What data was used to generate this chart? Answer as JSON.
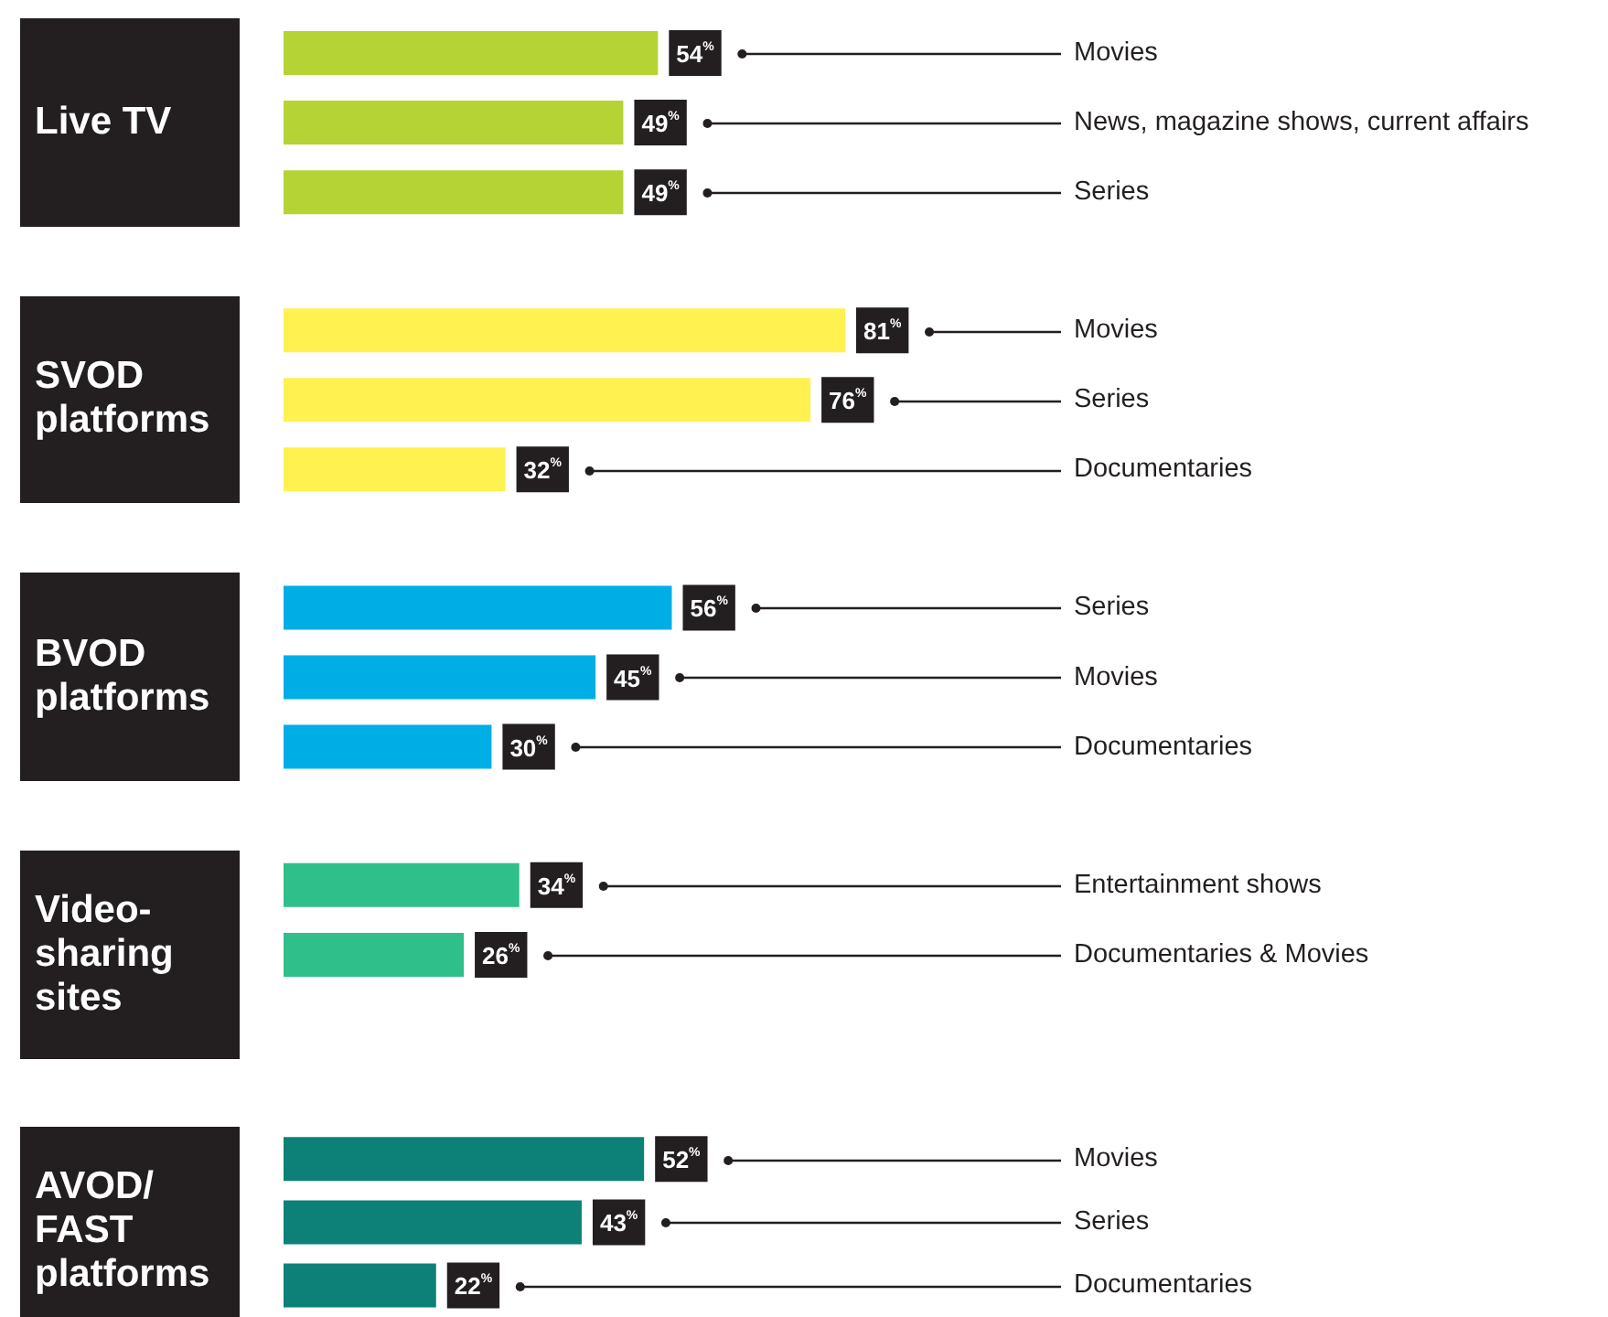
{
  "chart_data": {
    "type": "bar",
    "orientation": "horizontal",
    "tick_labels": "y",
    "categories": [
      "Movies",
      "News, magazine shows, current affairs",
      "Series",
      "Movies",
      "Series",
      "Documentaries",
      "Series",
      "Movies",
      "Documentaries",
      "Entertainment shows",
      "Documentaries & Movies",
      "Movies",
      "Series",
      "Documentaries"
    ],
    "series": [
      {
        "name": "Live TV",
        "color": "#b5d334",
        "values": [
          54,
          49,
          49,
          null,
          null,
          null,
          null,
          null,
          null,
          null,
          null,
          null,
          null,
          null
        ],
        "value_labels": [
          "54%",
          "49%",
          "49%",
          null,
          null,
          null,
          null,
          null,
          null,
          null,
          null,
          null,
          null,
          null
        ]
      },
      {
        "name": "SVOD platforms",
        "color": "#fff150",
        "values": [
          null,
          null,
          null,
          81,
          76,
          32,
          null,
          null,
          null,
          null,
          null,
          null,
          null,
          null
        ],
        "value_labels": [
          null,
          null,
          null,
          "81%",
          "76%",
          "32%",
          null,
          null,
          null,
          null,
          null,
          null,
          null,
          null
        ]
      },
      {
        "name": "BVOD platforms",
        "color": "#00aee6",
        "values": [
          null,
          null,
          null,
          null,
          null,
          null,
          56,
          45,
          30,
          null,
          null,
          null,
          null,
          null
        ],
        "value_labels": [
          null,
          null,
          null,
          null,
          null,
          null,
          "56%",
          "45%",
          "30%",
          null,
          null,
          null,
          null,
          null
        ]
      },
      {
        "name": "Video-sharing sites",
        "color": "#2fbf8a",
        "values": [
          null,
          null,
          null,
          null,
          null,
          null,
          null,
          null,
          null,
          34,
          26,
          null,
          null,
          null
        ],
        "value_labels": [
          null,
          null,
          null,
          null,
          null,
          null,
          null,
          null,
          null,
          "34%",
          "26%",
          null,
          null,
          null
        ]
      },
      {
        "name": "AVOD/ FAST platforms",
        "color": "#0d8077",
        "values": [
          null,
          null,
          null,
          null,
          null,
          null,
          null,
          null,
          null,
          null,
          null,
          52,
          43,
          22
        ],
        "value_labels": [
          null,
          null,
          null,
          null,
          null,
          null,
          null,
          null,
          null,
          null,
          null,
          "52%",
          "43%",
          "22%"
        ]
      }
    ]
  }
}
